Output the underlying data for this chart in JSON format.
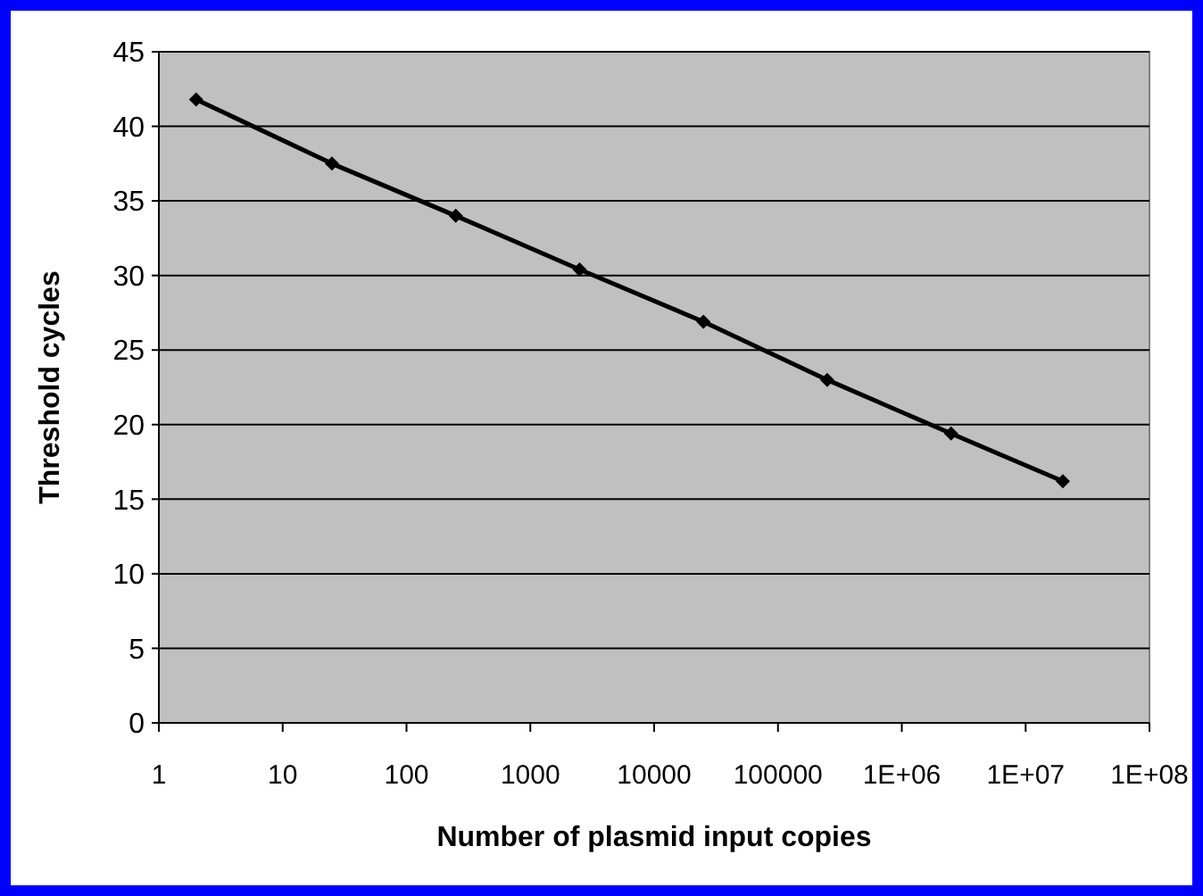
{
  "chart_data": {
    "type": "line",
    "xlabel": "Number of plasmid input copies",
    "ylabel": "Threshold cycles",
    "x": [
      2,
      25,
      250,
      2500,
      25000,
      250000,
      2500000,
      20000000
    ],
    "series": [
      {
        "color": "#000000",
        "values": [
          41.8,
          37.5,
          34,
          30.4,
          26.9,
          23,
          19.4,
          16.2
        ]
      }
    ],
    "log": "x",
    "xlim": [
      1,
      100000000
    ],
    "xticks": [
      1,
      10,
      100,
      1000,
      10000,
      100000,
      {
        "value": 1000000,
        "label": "1E+06"
      },
      {
        "value": 10000000,
        "label": "1E+07"
      },
      {
        "value": 100000000,
        "label": "1E+08"
      }
    ],
    "ylim": [
      0,
      45
    ],
    "yticks": [
      0,
      5,
      10,
      15,
      20,
      25,
      30,
      35,
      40,
      45
    ],
    "grid": "y",
    "marker": "diamond",
    "line_style": "solid"
  }
}
